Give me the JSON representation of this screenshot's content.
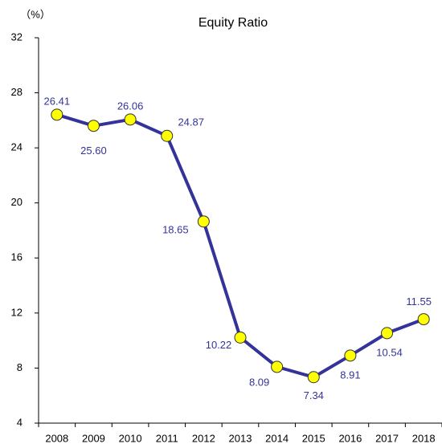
{
  "chart_data": {
    "type": "line",
    "title": "Equity Ratio",
    "y_label": "（%）",
    "categories": [
      "2008",
      "2009",
      "2010",
      "2011",
      "2012",
      "2013",
      "2014",
      "2015",
      "2016",
      "2017",
      "2018"
    ],
    "series": [
      {
        "name": "Equity Ratio",
        "color": "#333399",
        "marker_color": "#ffff00",
        "values": [
          26.41,
          25.6,
          26.06,
          24.87,
          18.65,
          10.22,
          8.09,
          7.34,
          8.91,
          10.54,
          11.55
        ],
        "value_labels": [
          "26.41",
          "25.60",
          "26.06",
          "24.87",
          "18.65",
          "10.22",
          "8.09",
          "7.34",
          "8.91",
          "10.54",
          "11.55"
        ]
      }
    ],
    "ylim": [
      4,
      32
    ],
    "yticks": [
      4,
      8,
      12,
      16,
      20,
      24,
      28,
      32
    ],
    "grid": false
  }
}
